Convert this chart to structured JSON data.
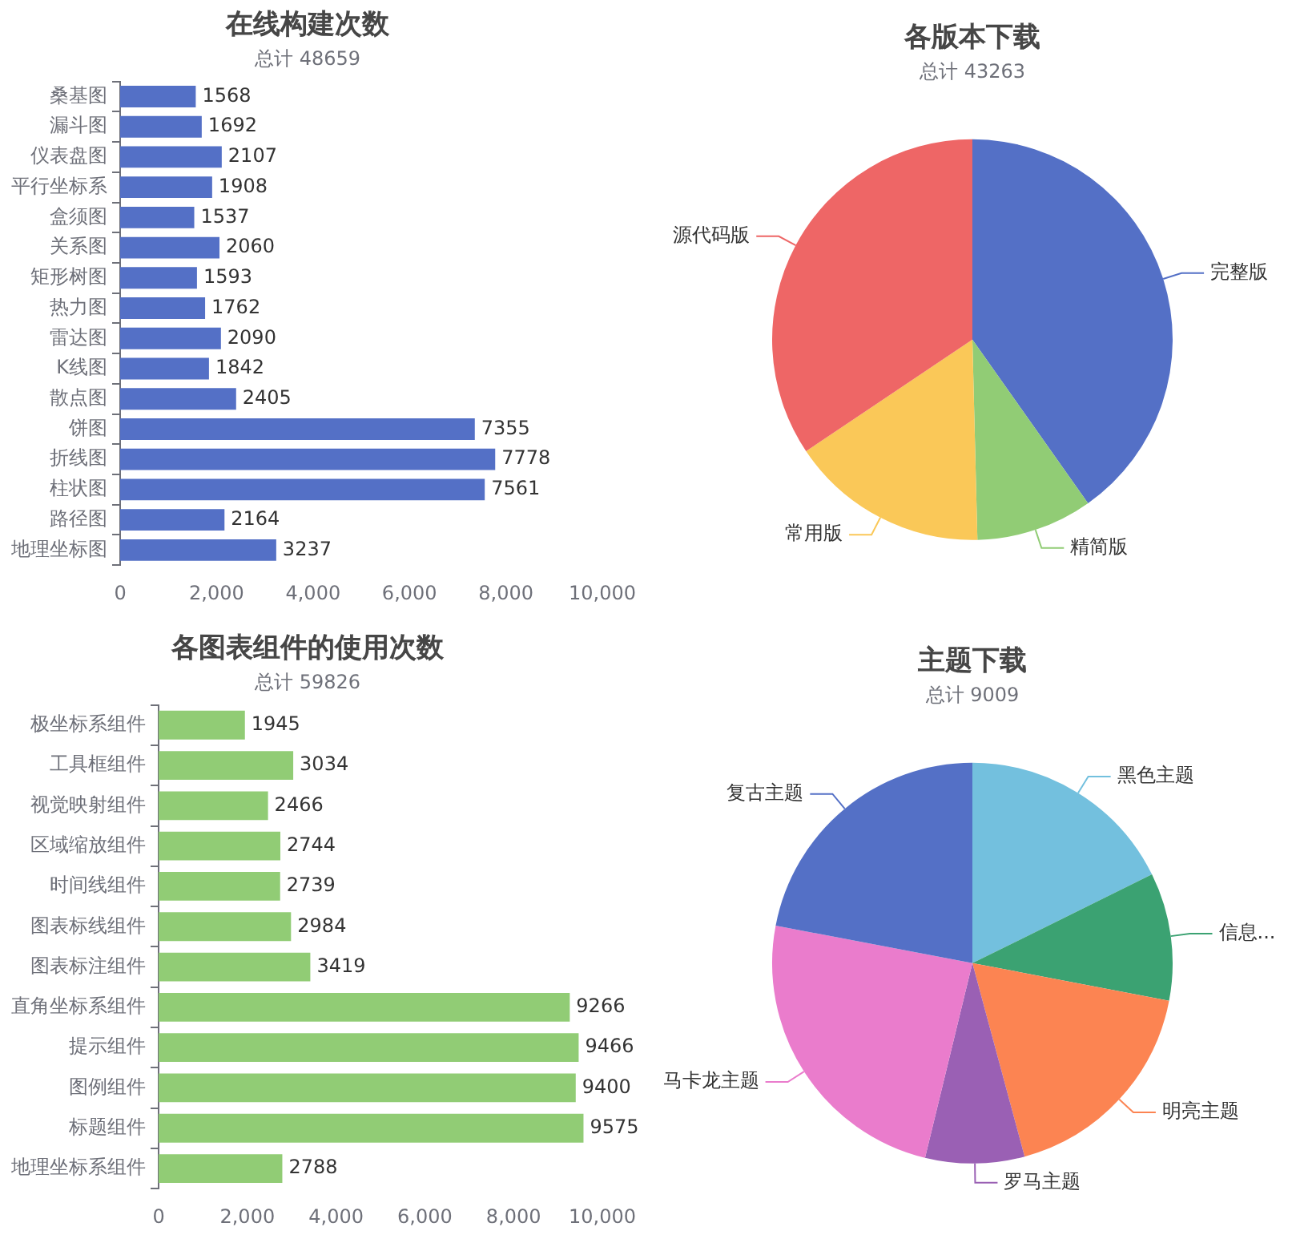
{
  "chart_data": [
    {
      "type": "bar",
      "orientation": "horizontal",
      "title": "在线构建次数",
      "subtitle": "总计 48659",
      "categories": [
        "桑基图",
        "漏斗图",
        "仪表盘图",
        "平行坐标系",
        "盒须图",
        "关系图",
        "矩形树图",
        "热力图",
        "雷达图",
        "K线图",
        "散点图",
        "饼图",
        "折线图",
        "柱状图",
        "路径图",
        "地理坐标图"
      ],
      "values": [
        1568,
        1692,
        2107,
        1908,
        1537,
        2060,
        1593,
        1762,
        2090,
        1842,
        2405,
        7355,
        7778,
        7561,
        2164,
        3237
      ],
      "color": "#5470c6",
      "data_labels": true,
      "xlim": [
        0,
        10000
      ],
      "xticks": [
        0,
        {
          "value": 2000,
          "label": "2,000"
        },
        {
          "value": 4000,
          "label": "4,000"
        },
        {
          "value": 6000,
          "label": "6,000"
        },
        {
          "value": 8000,
          "label": "8,000"
        },
        {
          "value": 10000,
          "label": "10,000"
        }
      ],
      "grid": false
    },
    {
      "type": "pie",
      "title": "各版本下载",
      "subtitle": "总计 43263",
      "categories": [
        "完整版",
        "精简版",
        "常用版",
        "源代码版"
      ],
      "values": [
        40.2,
        9.4,
        16.0,
        34.4
      ],
      "colors": [
        "#5470c6",
        "#91cc75",
        "#fac858",
        "#ee6666"
      ]
    },
    {
      "type": "bar",
      "orientation": "horizontal",
      "title": "各图表组件的使用次数",
      "subtitle": "总计 59826",
      "categories": [
        "极坐标系组件",
        "工具框组件",
        "视觉映射组件",
        "区域缩放组件",
        "时间线组件",
        "图表标线组件",
        "图表标注组件",
        "直角坐标系组件",
        "提示组件",
        "图例组件",
        "标题组件",
        "地理坐标系组件"
      ],
      "values": [
        1945,
        3034,
        2466,
        2744,
        2739,
        2984,
        3419,
        9266,
        9466,
        9400,
        9575,
        2788
      ],
      "color": "#91cc75",
      "data_labels": true,
      "xlim": [
        0,
        10000
      ],
      "xticks": [
        0,
        {
          "value": 2000,
          "label": "2,000"
        },
        {
          "value": 4000,
          "label": "4,000"
        },
        {
          "value": 6000,
          "label": "6,000"
        },
        {
          "value": 8000,
          "label": "8,000"
        },
        {
          "value": 10000,
          "label": "10,000"
        }
      ],
      "grid": false
    },
    {
      "type": "pie",
      "title": "主题下载",
      "subtitle": "总计 9009",
      "categories": [
        "黑色主题",
        "信息...",
        "明亮主题",
        "罗马主题",
        "马卡龙主题",
        "复古主题"
      ],
      "values": [
        17.7,
        10.3,
        17.8,
        8.0,
        24.2,
        22.0
      ],
      "colors": [
        "#73c0de",
        "#3ba272",
        "#fc8452",
        "#9a60b4",
        "#ea7ccc",
        "#5470c6"
      ]
    }
  ]
}
